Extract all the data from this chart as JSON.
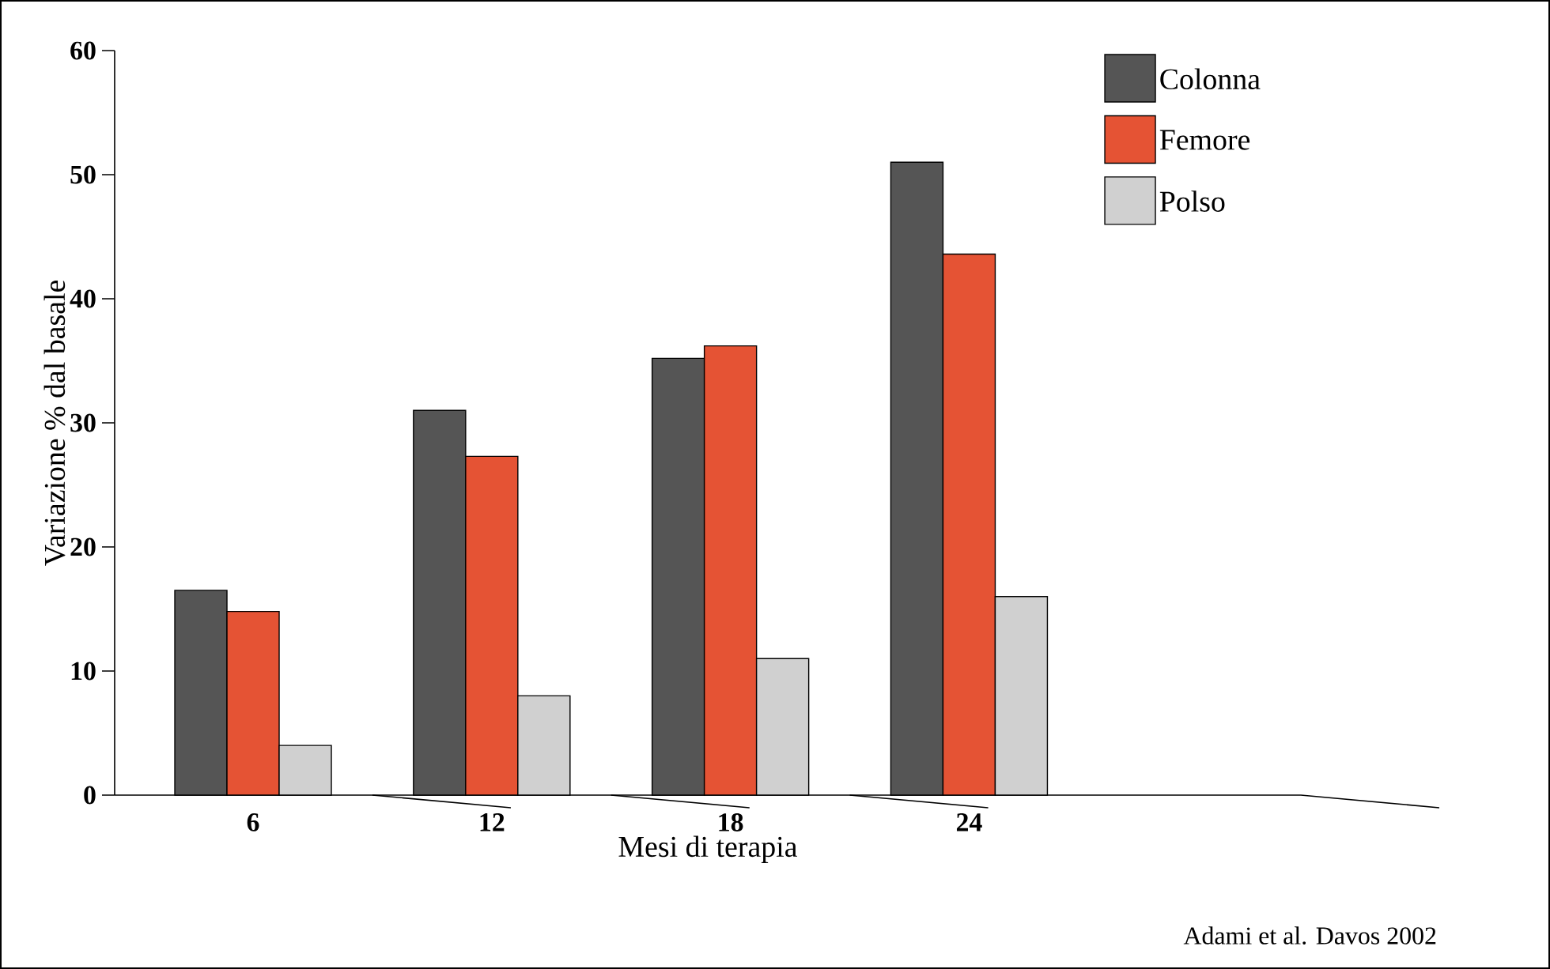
{
  "chart_data": {
    "type": "bar",
    "xlabel": "Mesi di terapia",
    "ylabel": "Variazione % dal basale",
    "categories": [
      "6",
      "12",
      "18",
      "24",
      null
    ],
    "series": [
      {
        "name": "Colonna",
        "color": "#555555",
        "values": [
          16.5,
          31,
          35.2,
          51,
          null
        ]
      },
      {
        "name": "Femore",
        "color": "#e55334",
        "values": [
          14.8,
          27.3,
          36.2,
          43.6,
          null
        ]
      },
      {
        "name": "Polso",
        "color": "#d0d0d0",
        "values": [
          4,
          8,
          11,
          16,
          null
        ]
      }
    ],
    "ylim": [
      0,
      60
    ],
    "yticks": [
      0,
      10,
      20,
      30,
      40,
      50,
      60
    ],
    "grid": false,
    "legend": "top right",
    "annotations": [
      "Adami et al. Davos 2002"
    ]
  }
}
